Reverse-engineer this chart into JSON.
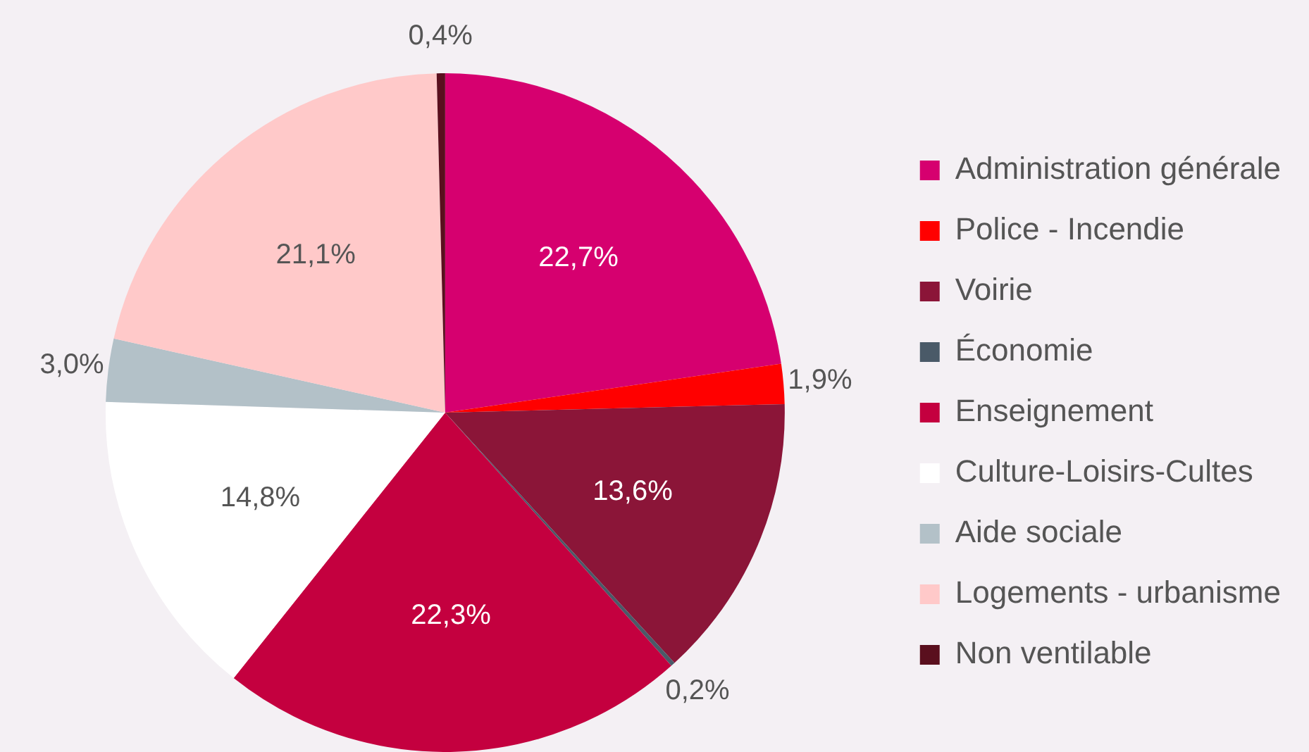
{
  "chart_data": {
    "type": "pie",
    "categories": [
      "Administration générale",
      "Police - Incendie",
      "Voirie",
      "Économie",
      "Enseignement",
      "Culture-Loisirs-Cultes",
      "Aide sociale",
      "Logements - urbanisme",
      "Non ventilable"
    ],
    "values": [
      22.7,
      1.9,
      13.6,
      0.2,
      22.3,
      14.8,
      3.0,
      21.1,
      0.4
    ],
    "colors": [
      "#d6006f",
      "#ff0000",
      "#8b1538",
      "#4a5a68",
      "#c4003f",
      "#ffffff",
      "#b3c1c8",
      "#ffc9c9",
      "#5a0f1e"
    ],
    "value_labels": [
      "22,7%",
      "1,9%",
      "13,6%",
      "0,2%",
      "22,3%",
      "14,8%",
      "3,0%",
      "21,1%",
      "0,4%"
    ],
    "legend": "right"
  }
}
